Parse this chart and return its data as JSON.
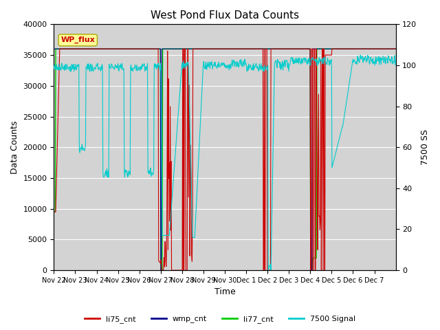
{
  "title": "West Pond Flux Data Counts",
  "xlabel": "Time",
  "ylabel_left": "Data Counts",
  "ylabel_right": "7500 SS",
  "ylim_left": [
    0,
    40000
  ],
  "ylim_right": [
    0,
    120
  ],
  "bg_color": "#d3d3d3",
  "legend_labels": [
    "li75_cnt",
    "wmp_cnt",
    "li77_cnt",
    "7500 Signal"
  ],
  "legend_colors": [
    "#cc0000",
    "#00008b",
    "#00cc00",
    "#00cccc"
  ],
  "wp_flux_box_color": "#ffff99",
  "wp_flux_text_color": "#cc0000",
  "x_tick_labels": [
    "Nov 22",
    "Nov 23",
    "Nov 24",
    "Nov 25",
    "Nov 26",
    "Nov 27",
    "Nov 28",
    "Nov 29",
    "Nov 30",
    "Dec 1",
    "Dec 2",
    "Dec 3",
    "Dec 4",
    "Dec 5",
    "Dec 6",
    "Dec 7"
  ],
  "num_days": 16
}
